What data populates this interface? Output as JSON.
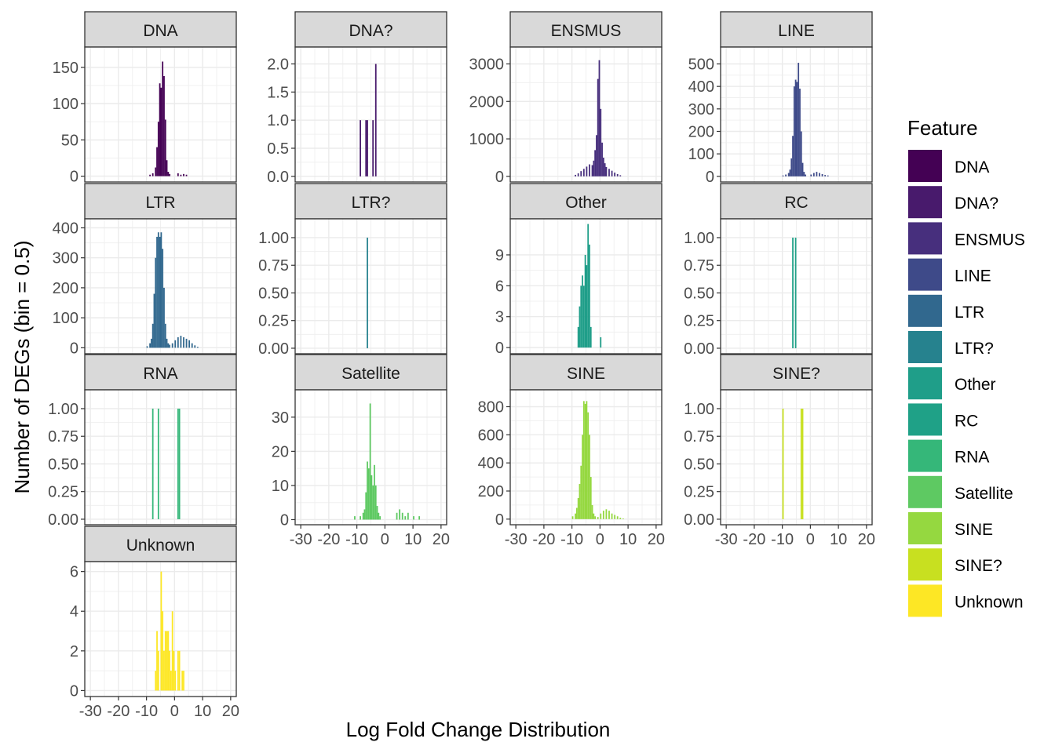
{
  "chart_data": {
    "type": "bar",
    "xlabel": "Log Fold Change Distribution",
    "ylabel": "Number of DEGs (bin = 0.5)",
    "x_ticks": [
      -30,
      -20,
      -10,
      0,
      10,
      20
    ],
    "x_tick_labels": [
      "-30",
      "-20",
      "-10",
      "0",
      "10",
      "20"
    ],
    "xlim": [
      -32,
      22
    ],
    "bin_width": 0.5,
    "grid": true,
    "legend": {
      "title": "Feature",
      "position": "right",
      "items": [
        {
          "label": "DNA",
          "color": "#440154"
        },
        {
          "label": "DNA?",
          "color": "#481A6C"
        },
        {
          "label": "ENSMUS",
          "color": "#472F7D"
        },
        {
          "label": "LINE",
          "color": "#3E4A89"
        },
        {
          "label": "LTR",
          "color": "#31688E"
        },
        {
          "label": "LTR?",
          "color": "#26828E"
        },
        {
          "label": "Other",
          "color": "#1F9E89"
        },
        {
          "label": "RC",
          "color": "#1FA187"
        },
        {
          "label": "RNA",
          "color": "#35B779"
        },
        {
          "label": "Satellite",
          "color": "#5EC962"
        },
        {
          "label": "SINE",
          "color": "#95D840"
        },
        {
          "label": "SINE?",
          "color": "#C8E020"
        },
        {
          "label": "Unknown",
          "color": "#FDE725"
        }
      ]
    },
    "panels": [
      {
        "name": "DNA",
        "color": "#440154",
        "ylim": [
          -8,
          178
        ],
        "y_ticks": [
          0,
          50,
          100,
          150
        ],
        "y_tick_labels": [
          "0",
          "50",
          "100",
          "150"
        ],
        "bins": [
          [
            -9,
            2
          ],
          [
            -8,
            4
          ],
          [
            -7,
            12
          ],
          [
            -6.5,
            40
          ],
          [
            -6,
            75
          ],
          [
            -5.5,
            128
          ],
          [
            -5,
            122
          ],
          [
            -4.5,
            158
          ],
          [
            -4,
            138
          ],
          [
            -3.5,
            78
          ],
          [
            -3,
            22
          ],
          [
            -2.5,
            6
          ],
          [
            -2,
            3
          ],
          [
            1,
            4
          ],
          [
            2,
            2
          ],
          [
            3,
            3
          ],
          [
            4,
            2
          ]
        ]
      },
      {
        "name": "DNA?",
        "color": "#481A6C",
        "ylim": [
          -0.1,
          2.3
        ],
        "y_ticks": [
          0,
          0.5,
          1,
          1.5,
          2
        ],
        "y_tick_labels": [
          "0.0",
          "0.5",
          "1.0",
          "1.5",
          "2.0"
        ],
        "bins": [
          [
            -9,
            1
          ],
          [
            -7,
            1
          ],
          [
            -6.5,
            1
          ],
          [
            -4.5,
            1
          ],
          [
            -3.5,
            2
          ]
        ]
      },
      {
        "name": "ENSMUS",
        "color": "#472F7D",
        "ylim": [
          -150,
          3450
        ],
        "y_ticks": [
          0,
          1000,
          2000,
          3000
        ],
        "y_tick_labels": [
          "0",
          "1000",
          "2000",
          "3000"
        ],
        "bins": [
          [
            -9,
            40
          ],
          [
            -8,
            80
          ],
          [
            -7,
            140
          ],
          [
            -6,
            200
          ],
          [
            -5,
            260
          ],
          [
            -4,
            320
          ],
          [
            -3,
            300
          ],
          [
            -2.5,
            420
          ],
          [
            -2,
            700
          ],
          [
            -1.5,
            1100
          ],
          [
            -1,
            2600
          ],
          [
            -0.5,
            3100
          ],
          [
            0,
            1800
          ],
          [
            0.5,
            900
          ],
          [
            1,
            500
          ],
          [
            1.5,
            350
          ],
          [
            2,
            250
          ],
          [
            3,
            200
          ],
          [
            4,
            150
          ],
          [
            5,
            100
          ],
          [
            6,
            60
          ],
          [
            7,
            30
          ]
        ]
      },
      {
        "name": "LINE",
        "color": "#3E4A89",
        "ylim": [
          -25,
          575
        ],
        "y_ticks": [
          0,
          100,
          200,
          300,
          400,
          500
        ],
        "y_tick_labels": [
          "0",
          "100",
          "200",
          "300",
          "400",
          "500"
        ],
        "bins": [
          [
            -10,
            4
          ],
          [
            -9,
            8
          ],
          [
            -8,
            15
          ],
          [
            -7.5,
            30
          ],
          [
            -7,
            80
          ],
          [
            -6.5,
            180
          ],
          [
            -6,
            400
          ],
          [
            -5.5,
            430
          ],
          [
            -5,
            420
          ],
          [
            -4.5,
            505
          ],
          [
            -4,
            390
          ],
          [
            -3.5,
            200
          ],
          [
            -3,
            60
          ],
          [
            -2.5,
            20
          ],
          [
            -2,
            8
          ],
          [
            0,
            8
          ],
          [
            1,
            15
          ],
          [
            2,
            20
          ],
          [
            3,
            15
          ],
          [
            4,
            10
          ],
          [
            5,
            6
          ],
          [
            6,
            4
          ]
        ]
      },
      {
        "name": "LTR",
        "color": "#31688E",
        "ylim": [
          -20,
          430
        ],
        "y_ticks": [
          0,
          100,
          200,
          300,
          400
        ],
        "y_tick_labels": [
          "0",
          "100",
          "200",
          "300",
          "400"
        ],
        "bins": [
          [
            -10,
            5
          ],
          [
            -9,
            15
          ],
          [
            -8.5,
            30
          ],
          [
            -8,
            80
          ],
          [
            -7.5,
            180
          ],
          [
            -7,
            300
          ],
          [
            -6.5,
            370
          ],
          [
            -6,
            385
          ],
          [
            -5.5,
            370
          ],
          [
            -5,
            385
          ],
          [
            -4.5,
            330
          ],
          [
            -4,
            200
          ],
          [
            -3.5,
            80
          ],
          [
            -3,
            30
          ],
          [
            -2.5,
            15
          ],
          [
            -2,
            10
          ],
          [
            -1,
            15
          ],
          [
            0,
            25
          ],
          [
            1,
            35
          ],
          [
            2,
            40
          ],
          [
            3,
            35
          ],
          [
            4,
            30
          ],
          [
            5,
            25
          ],
          [
            6,
            15
          ],
          [
            7,
            8
          ],
          [
            8,
            3
          ]
        ]
      },
      {
        "name": "LTR?",
        "color": "#26828E",
        "ylim": [
          -0.05,
          1.17
        ],
        "y_ticks": [
          0,
          0.25,
          0.5,
          0.75,
          1
        ],
        "y_tick_labels": [
          "0.00",
          "0.25",
          "0.50",
          "0.75",
          "1.00"
        ],
        "bins": [
          [
            -6.5,
            1
          ]
        ]
      },
      {
        "name": "Other",
        "color": "#1F9E89",
        "ylim": [
          -0.6,
          12.5
        ],
        "y_ticks": [
          0,
          3,
          6,
          9
        ],
        "y_tick_labels": [
          "0",
          "3",
          "6",
          "9"
        ],
        "bins": [
          [
            -8,
            2
          ],
          [
            -7.5,
            4
          ],
          [
            -7,
            6
          ],
          [
            -6.5,
            7
          ],
          [
            -6,
            6
          ],
          [
            -5.5,
            9
          ],
          [
            -5,
            8
          ],
          [
            -4.5,
            12
          ],
          [
            -4,
            10
          ],
          [
            -3.5,
            2
          ],
          [
            0,
            1
          ]
        ]
      },
      {
        "name": "RC",
        "color": "#1FA187",
        "ylim": [
          -0.05,
          1.17
        ],
        "y_ticks": [
          0,
          0.25,
          0.5,
          0.75,
          1
        ],
        "y_tick_labels": [
          "0.00",
          "0.25",
          "0.50",
          "0.75",
          "1.00"
        ],
        "bins": [
          [
            -6.5,
            1
          ],
          [
            -5.5,
            1
          ]
        ]
      },
      {
        "name": "RNA",
        "color": "#35B779",
        "ylim": [
          -0.05,
          1.17
        ],
        "y_ticks": [
          0,
          0.25,
          0.5,
          0.75,
          1
        ],
        "y_tick_labels": [
          "0.00",
          "0.25",
          "0.50",
          "0.75",
          "1.00"
        ],
        "bins": [
          [
            -8,
            1
          ],
          [
            -6,
            1
          ],
          [
            1,
            1
          ],
          [
            1.5,
            1
          ]
        ]
      },
      {
        "name": "Satellite",
        "color": "#5EC962",
        "ylim": [
          -1.5,
          38
        ],
        "y_ticks": [
          0,
          10,
          20,
          30
        ],
        "y_tick_labels": [
          "0",
          "10",
          "20",
          "30"
        ],
        "bins": [
          [
            -11,
            1
          ],
          [
            -9,
            1
          ],
          [
            -8,
            2
          ],
          [
            -7.5,
            3
          ],
          [
            -7,
            8
          ],
          [
            -6.5,
            17
          ],
          [
            -6,
            15
          ],
          [
            -5.5,
            34
          ],
          [
            -5,
            13
          ],
          [
            -4.5,
            10
          ],
          [
            -4,
            16
          ],
          [
            -3.5,
            10
          ],
          [
            -3,
            4
          ],
          [
            -2.5,
            2
          ],
          [
            -2,
            1
          ],
          [
            4,
            2
          ],
          [
            5,
            3
          ],
          [
            6,
            2
          ],
          [
            7,
            1
          ],
          [
            8,
            2
          ],
          [
            10,
            1
          ],
          [
            12,
            1
          ]
        ]
      },
      {
        "name": "SINE",
        "color": "#95D840",
        "ylim": [
          -40,
          920
        ],
        "y_ticks": [
          0,
          200,
          400,
          600,
          800
        ],
        "y_tick_labels": [
          "0",
          "200",
          "400",
          "600",
          "800"
        ],
        "bins": [
          [
            -10,
            20
          ],
          [
            -9,
            40
          ],
          [
            -8.5,
            80
          ],
          [
            -8,
            150
          ],
          [
            -7.5,
            250
          ],
          [
            -7,
            380
          ],
          [
            -6.5,
            600
          ],
          [
            -6,
            840
          ],
          [
            -5.5,
            820
          ],
          [
            -5,
            840
          ],
          [
            -4.5,
            760
          ],
          [
            -4,
            600
          ],
          [
            -3.5,
            300
          ],
          [
            -3,
            100
          ],
          [
            -2.5,
            40
          ],
          [
            -2,
            20
          ],
          [
            -1,
            15
          ],
          [
            0,
            40
          ],
          [
            1,
            60
          ],
          [
            2,
            70
          ],
          [
            3,
            60
          ],
          [
            4,
            40
          ],
          [
            5,
            30
          ],
          [
            6,
            20
          ],
          [
            7,
            10
          ],
          [
            8,
            5
          ]
        ]
      },
      {
        "name": "SINE?",
        "color": "#C8E020",
        "ylim": [
          -0.05,
          1.17
        ],
        "y_ticks": [
          0,
          0.25,
          0.5,
          0.75,
          1
        ],
        "y_tick_labels": [
          "0.00",
          "0.25",
          "0.50",
          "0.75",
          "1.00"
        ],
        "bins": [
          [
            -10,
            1
          ],
          [
            -3.5,
            1
          ],
          [
            -3,
            1
          ]
        ]
      },
      {
        "name": "Unknown",
        "color": "#FDE725",
        "ylim": [
          -0.3,
          6.5
        ],
        "y_ticks": [
          0,
          2,
          4,
          6
        ],
        "y_tick_labels": [
          "0",
          "2",
          "4",
          "6"
        ],
        "bins": [
          [
            -7,
            1
          ],
          [
            -6.5,
            3
          ],
          [
            -6,
            2
          ],
          [
            -5,
            6
          ],
          [
            -4.5,
            4
          ],
          [
            -4,
            2
          ],
          [
            -3.5,
            3
          ],
          [
            -3,
            3
          ],
          [
            -2.5,
            3
          ],
          [
            -2,
            2
          ],
          [
            -1.5,
            1
          ],
          [
            -1,
            4
          ],
          [
            -0.5,
            2
          ],
          [
            0,
            1
          ],
          [
            1,
            2
          ],
          [
            1.5,
            2
          ],
          [
            2.5,
            1
          ],
          [
            3,
            1
          ]
        ]
      }
    ]
  }
}
